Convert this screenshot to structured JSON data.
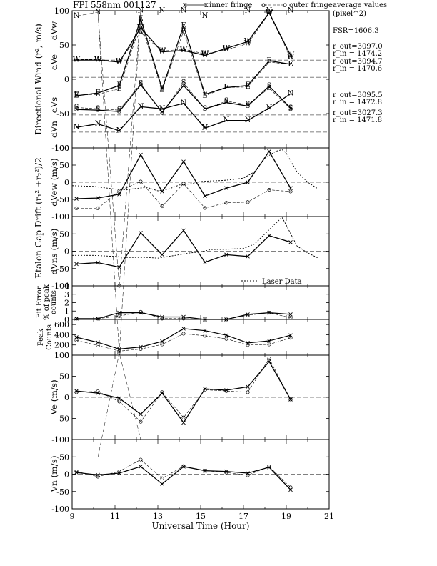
{
  "header": {
    "title": "FPI 558nm 001127",
    "legend_inner_symbol": "x",
    "legend_inner_label": "inner fringe",
    "legend_outer_symbol": "o",
    "legend_outer_label": "outer fringe",
    "avg_title_1": "average values",
    "avg_title_2": "(pixel^2)"
  },
  "side_text": {
    "fsr": "FSR=1606.3",
    "w_out": "r_out=3097.0",
    "w_in": "r_in = 1474.2",
    "e_out": "r_out=3094.7",
    "e_in": "r_in = 1470.6",
    "s_out": "r_out=3095.5",
    "s_in": "r_in = 1472.8",
    "n_out": "r_out=3027.3",
    "n_in": "r_in = 1471.8"
  },
  "chart_data": [
    {
      "id": "directional",
      "type": "line",
      "ylabel": "Directional Wind (r², m/s)",
      "ylim": [
        -100,
        100
      ],
      "yticks": [
        "-100",
        "-50",
        "0",
        "50",
        "100"
      ],
      "sub_labels": [
        "dVw",
        "dVe",
        "dVs",
        "dVn"
      ],
      "series": [
        {
          "name": "W",
          "offset": 28,
          "inner": [
            [
              9.2,
              28
            ],
            [
              10.2,
              28
            ],
            [
              11.2,
              25
            ],
            [
              12.2,
              75
            ],
            [
              13.2,
              40
            ],
            [
              14.2,
              42
            ],
            [
              15.2,
              35
            ],
            [
              16.2,
              45
            ],
            [
              17.2,
              55
            ],
            [
              18.2,
              97
            ],
            [
              19.2,
              35
            ]
          ],
          "outer": [
            [
              9.2,
              29
            ],
            [
              10.2,
              29
            ],
            [
              11.2,
              26
            ],
            [
              12.2,
              68
            ],
            [
              13.2,
              41
            ],
            [
              14.2,
              44
            ],
            [
              15.2,
              37
            ],
            [
              16.2,
              43
            ],
            [
              17.2,
              52
            ],
            [
              18.2,
              96
            ],
            [
              19.2,
              32
            ]
          ]
        },
        {
          "name": "E",
          "offset": 3,
          "inner": [
            [
              9.2,
              -24
            ],
            [
              10.2,
              -20
            ],
            [
              11.2,
              -9
            ],
            [
              12.2,
              88
            ],
            [
              13.2,
              -14
            ],
            [
              14.2,
              78
            ],
            [
              15.2,
              -22
            ],
            [
              16.2,
              -12
            ],
            [
              17.2,
              -9
            ],
            [
              18.2,
              27
            ],
            [
              19.2,
              22
            ]
          ],
          "outer": [
            [
              9.2,
              -23
            ],
            [
              10.2,
              -22
            ],
            [
              11.2,
              -14
            ],
            [
              12.2,
              82
            ],
            [
              13.2,
              -16
            ],
            [
              14.2,
              70
            ],
            [
              15.2,
              -24
            ],
            [
              16.2,
              -12
            ],
            [
              17.2,
              -11
            ],
            [
              18.2,
              25
            ],
            [
              19.2,
              22
            ]
          ]
        },
        {
          "name": "S",
          "offset": -52,
          "inner": [
            [
              9.2,
              -44
            ],
            [
              10.2,
              -45
            ],
            [
              11.2,
              -47
            ],
            [
              12.2,
              -8
            ],
            [
              13.2,
              -48
            ],
            [
              14.2,
              -9
            ],
            [
              15.2,
              -43
            ],
            [
              16.2,
              -34
            ],
            [
              17.2,
              -39
            ],
            [
              18.2,
              -10
            ],
            [
              19.2,
              -42
            ]
          ],
          "outer": [
            [
              9.2,
              -41
            ],
            [
              10.2,
              -43
            ],
            [
              11.2,
              -45
            ],
            [
              12.2,
              -6
            ],
            [
              13.2,
              -49
            ],
            [
              14.2,
              -5
            ],
            [
              15.2,
              -43
            ],
            [
              16.2,
              -32
            ],
            [
              17.2,
              -37
            ],
            [
              18.2,
              -13
            ],
            [
              19.2,
              -43
            ]
          ]
        },
        {
          "name": "N",
          "offset": -77,
          "inner": [
            [
              9.2,
              -70
            ],
            [
              10.2,
              -65
            ],
            [
              11.2,
              -75
            ],
            [
              12.2,
              -40
            ],
            [
              13.2,
              -43
            ],
            [
              14.2,
              -35
            ],
            [
              15.2,
              -71
            ],
            [
              16.2,
              -60
            ],
            [
              17.2,
              -60
            ],
            [
              18.2,
              -42
            ],
            [
              19.2,
              -21
            ]
          ],
          "outer": [
            [
              9.2,
              92
            ],
            [
              10.2,
              98
            ],
            [
              12.2,
              100
            ],
            [
              13.2,
              100
            ],
            [
              14.2,
              100
            ],
            [
              15.2,
              92
            ],
            [
              17.2,
              100
            ],
            [
              18.2,
              100
            ],
            [
              19.2,
              100
            ]
          ]
        }
      ]
    },
    {
      "id": "dvew",
      "type": "line",
      "ylabel": "dVew (m/s)",
      "ylim": [
        -100,
        100
      ],
      "yticks": [
        "-100",
        "-50",
        "0",
        "50",
        "100"
      ],
      "inner": [
        [
          9.2,
          -48
        ],
        [
          10.2,
          -46
        ],
        [
          11.2,
          -35
        ],
        [
          12.2,
          80
        ],
        [
          13.2,
          -27
        ],
        [
          14.2,
          60
        ],
        [
          15.2,
          -40
        ],
        [
          16.2,
          -17
        ],
        [
          17.2,
          0
        ],
        [
          18.2,
          90
        ],
        [
          19.2,
          -17
        ]
      ],
      "outer": [
        [
          9.2,
          -76
        ],
        [
          10.2,
          -76
        ],
        [
          11.2,
          -25
        ],
        [
          12.2,
          2
        ],
        [
          13.2,
          -70
        ],
        [
          14.2,
          -4
        ],
        [
          15.2,
          -75
        ],
        [
          16.2,
          -60
        ],
        [
          17.2,
          -58
        ],
        [
          18.2,
          -22
        ],
        [
          19.2,
          -27
        ]
      ],
      "laser": [
        [
          9,
          -10
        ],
        [
          10,
          -12
        ],
        [
          11,
          -20
        ],
        [
          11.5,
          -22
        ],
        [
          12,
          -18
        ],
        [
          12.5,
          -15
        ],
        [
          13,
          -25
        ],
        [
          13.5,
          -20
        ],
        [
          14,
          -8
        ],
        [
          14.5,
          -5
        ],
        [
          15,
          2
        ],
        [
          15.5,
          4
        ],
        [
          16,
          5
        ],
        [
          16.5,
          8
        ],
        [
          17,
          12
        ],
        [
          17.5,
          30
        ],
        [
          18,
          70
        ],
        [
          18.5,
          90
        ],
        [
          18.8,
          95
        ],
        [
          19,
          85
        ],
        [
          19.5,
          30
        ],
        [
          20,
          0
        ],
        [
          20.5,
          -20
        ]
      ]
    },
    {
      "id": "dvns",
      "type": "line",
      "ylabel": "dVns (m/s)",
      "ylim": [
        -100,
        100
      ],
      "yticks": [
        "-100",
        "-50",
        "0",
        "50"
      ],
      "shared_ylabel": "Etalon Gap Drift (r₁² +r₂²)/2",
      "inner": [
        [
          9.2,
          -37
        ],
        [
          10.2,
          -33
        ],
        [
          11.2,
          -46
        ],
        [
          12.2,
          53
        ],
        [
          13.2,
          -10
        ],
        [
          14.2,
          60
        ],
        [
          15.2,
          -32
        ],
        [
          16.2,
          -10
        ],
        [
          17.2,
          -15
        ],
        [
          18.2,
          45
        ],
        [
          19.2,
          26
        ]
      ],
      "laser": [
        [
          9,
          -12
        ],
        [
          10,
          -12
        ],
        [
          11,
          -15
        ],
        [
          11.5,
          -18
        ],
        [
          12,
          -18
        ],
        [
          12.5,
          -18
        ],
        [
          13,
          -20
        ],
        [
          13.5,
          -15
        ],
        [
          14,
          -10
        ],
        [
          14.5,
          -5
        ],
        [
          15,
          -2
        ],
        [
          15.5,
          5
        ],
        [
          16,
          5
        ],
        [
          17,
          8
        ],
        [
          17.5,
          20
        ],
        [
          18,
          50
        ],
        [
          18.5,
          80
        ],
        [
          18.8,
          98
        ],
        [
          19,
          75
        ],
        [
          19.5,
          15
        ],
        [
          20,
          -5
        ],
        [
          20.5,
          -20
        ]
      ],
      "legend_label": "Laser Data"
    },
    {
      "id": "fit_error",
      "type": "line",
      "ylabel": "Fit Error % of peak counts",
      "ylim": [
        0,
        4
      ],
      "yticks": [
        "0",
        "1",
        "2",
        "3",
        "4"
      ],
      "inner": [
        [
          9.2,
          0.1
        ],
        [
          10.2,
          0.1
        ],
        [
          11.2,
          0.8
        ],
        [
          12.2,
          0.8
        ],
        [
          13.2,
          0.3
        ],
        [
          14.2,
          0.3
        ],
        [
          15.2,
          0.0
        ],
        [
          16.2,
          0.0
        ],
        [
          17.2,
          0.6
        ],
        [
          18.2,
          0.8
        ],
        [
          19.2,
          0.6
        ]
      ],
      "outer": [
        [
          9.2,
          0.1
        ],
        [
          10.2,
          0.1
        ],
        [
          11.2,
          0.4
        ],
        [
          12.2,
          0.9
        ],
        [
          13.2,
          0.1
        ],
        [
          14.2,
          0.1
        ],
        [
          15.2,
          0.0
        ],
        [
          16.2,
          0.0
        ],
        [
          17.2,
          0.5
        ],
        [
          18.2,
          0.8
        ],
        [
          19.2,
          0.2
        ]
      ]
    },
    {
      "id": "peak_counts",
      "type": "line",
      "ylabel": "Peak Counts",
      "ylim": [
        0,
        700
      ],
      "yticks": [
        "0",
        "200",
        "400",
        "600"
      ],
      "inner": [
        [
          9.2,
          350
        ],
        [
          10.2,
          250
        ],
        [
          11.2,
          120
        ],
        [
          12.2,
          160
        ],
        [
          13.2,
          270
        ],
        [
          14.2,
          520
        ],
        [
          15.2,
          480
        ],
        [
          16.2,
          390
        ],
        [
          17.2,
          240
        ],
        [
          18.2,
          280
        ],
        [
          19.2,
          390
        ]
      ],
      "outer": [
        [
          9.2,
          290
        ],
        [
          10.2,
          190
        ],
        [
          11.2,
          80
        ],
        [
          12.2,
          120
        ],
        [
          13.2,
          210
        ],
        [
          14.2,
          420
        ],
        [
          15.2,
          380
        ],
        [
          16.2,
          320
        ],
        [
          17.2,
          200
        ],
        [
          18.2,
          210
        ],
        [
          19.2,
          340
        ]
      ]
    },
    {
      "id": "ve",
      "type": "line",
      "ylabel": "Ve (m/s)",
      "ylim": [
        -100,
        100
      ],
      "yticks": [
        "-100",
        "-50",
        "0",
        "50",
        "100"
      ],
      "inner": [
        [
          9.2,
          15
        ],
        [
          10.2,
          10
        ],
        [
          11.2,
          -2
        ],
        [
          12.2,
          -40
        ],
        [
          13.2,
          10
        ],
        [
          14.2,
          -60
        ],
        [
          15.2,
          20
        ],
        [
          16.2,
          17
        ],
        [
          17.2,
          25
        ],
        [
          18.2,
          85
        ],
        [
          19.2,
          -5
        ]
      ],
      "outer": [
        [
          9.2,
          12
        ],
        [
          10.2,
          14
        ],
        [
          11.2,
          -10
        ],
        [
          12.2,
          -58
        ],
        [
          13.2,
          12
        ],
        [
          14.2,
          -48
        ],
        [
          15.2,
          18
        ],
        [
          16.2,
          15
        ],
        [
          17.2,
          12
        ],
        [
          18.2,
          92
        ],
        [
          19.2,
          -5
        ]
      ]
    },
    {
      "id": "vn",
      "type": "line",
      "ylabel": "Vn (m/s)",
      "ylim": [
        -100,
        100
      ],
      "yticks": [
        "-100",
        "-50",
        "0",
        "50"
      ],
      "xlabel": "Universal Time (Hour)",
      "xlim": [
        9,
        21
      ],
      "xticks": [
        "9",
        "11",
        "13",
        "15",
        "17",
        "19",
        "21"
      ],
      "inner": [
        [
          9.2,
          5
        ],
        [
          10.2,
          -2
        ],
        [
          11.2,
          3
        ],
        [
          12.2,
          22
        ],
        [
          13.2,
          -28
        ],
        [
          14.2,
          22
        ],
        [
          15.2,
          10
        ],
        [
          16.2,
          8
        ],
        [
          17.2,
          3
        ],
        [
          18.2,
          20
        ],
        [
          19.2,
          -45
        ]
      ],
      "outer": [
        [
          9.2,
          8
        ],
        [
          10.2,
          -7
        ],
        [
          11.2,
          8
        ],
        [
          12.2,
          42
        ],
        [
          13.2,
          -12
        ],
        [
          14.2,
          23
        ],
        [
          15.2,
          10
        ],
        [
          16.2,
          5
        ],
        [
          17.2,
          -3
        ],
        [
          18.2,
          22
        ],
        [
          19.2,
          -38
        ]
      ]
    }
  ]
}
